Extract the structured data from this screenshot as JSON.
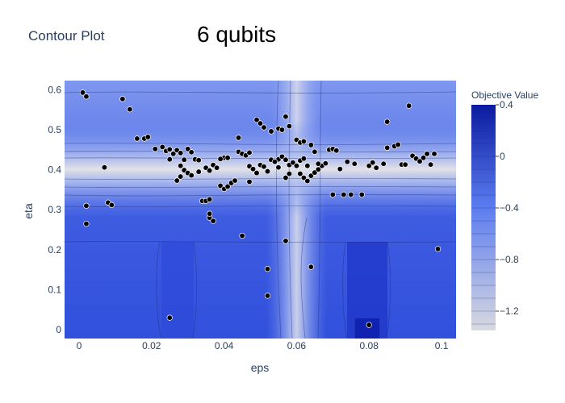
{
  "plot_label": "Contour Plot",
  "chart_data": {
    "type": "contour",
    "title": "6 qubits",
    "xlabel": "eps",
    "ylabel": "eta",
    "xlim": [
      -0.004,
      0.104
    ],
    "ylim": [
      -0.022,
      0.623
    ],
    "x_ticks": [
      "0",
      "0.02",
      "0.04",
      "0.06",
      "0.08",
      "0.1"
    ],
    "x_tick_values": [
      0,
      0.02,
      0.04,
      0.06,
      0.08,
      0.1
    ],
    "y_ticks": [
      "0",
      "0.1",
      "0.2",
      "0.3",
      "0.4",
      "0.5",
      "0.6"
    ],
    "y_tick_values": [
      0,
      0.1,
      0.2,
      0.3,
      0.4,
      0.5,
      0.6
    ],
    "colorbar": {
      "title": "Objective Value",
      "range": [
        -1.35,
        0.4
      ],
      "tick_labels": [
        "0.4",
        "0",
        "−0.4",
        "−0.8",
        "−1.2"
      ],
      "tick_values": [
        0.4,
        0,
        -0.4,
        -0.8,
        -1.2
      ],
      "colors": [
        "#d9d9df",
        "#5b7cf0",
        "#0a1aa0"
      ]
    },
    "points": [
      [
        0.001,
        0.593
      ],
      [
        0.002,
        0.583
      ],
      [
        0.012,
        0.577
      ],
      [
        0.014,
        0.551
      ],
      [
        0.016,
        0.478
      ],
      [
        0.018,
        0.478
      ],
      [
        0.019,
        0.482
      ],
      [
        0.002,
        0.31
      ],
      [
        0.002,
        0.265
      ],
      [
        0.008,
        0.318
      ],
      [
        0.009,
        0.312
      ],
      [
        0.007,
        0.406
      ],
      [
        0.021,
        0.452
      ],
      [
        0.023,
        0.457
      ],
      [
        0.024,
        0.447
      ],
      [
        0.025,
        0.451
      ],
      [
        0.026,
        0.44
      ],
      [
        0.025,
        0.426
      ],
      [
        0.027,
        0.449
      ],
      [
        0.028,
        0.442
      ],
      [
        0.029,
        0.425
      ],
      [
        0.03,
        0.452
      ],
      [
        0.031,
        0.444
      ],
      [
        0.032,
        0.426
      ],
      [
        0.028,
        0.41
      ],
      [
        0.029,
        0.399
      ],
      [
        0.03,
        0.392
      ],
      [
        0.031,
        0.386
      ],
      [
        0.033,
        0.395
      ],
      [
        0.035,
        0.405
      ],
      [
        0.036,
        0.398
      ],
      [
        0.037,
        0.412
      ],
      [
        0.034,
        0.322
      ],
      [
        0.035,
        0.322
      ],
      [
        0.036,
        0.326
      ],
      [
        0.036,
        0.28
      ],
      [
        0.036,
        0.29
      ],
      [
        0.037,
        0.272
      ],
      [
        0.039,
        0.36
      ],
      [
        0.04,
        0.352
      ],
      [
        0.041,
        0.358
      ],
      [
        0.042,
        0.367
      ],
      [
        0.043,
        0.373
      ],
      [
        0.044,
        0.445
      ],
      [
        0.045,
        0.44
      ],
      [
        0.046,
        0.436
      ],
      [
        0.047,
        0.443
      ],
      [
        0.044,
        0.48
      ],
      [
        0.047,
        0.409
      ],
      [
        0.048,
        0.402
      ],
      [
        0.049,
        0.392
      ],
      [
        0.05,
        0.412
      ],
      [
        0.051,
        0.408
      ],
      [
        0.052,
        0.396
      ],
      [
        0.053,
        0.425
      ],
      [
        0.054,
        0.419
      ],
      [
        0.055,
        0.426
      ],
      [
        0.056,
        0.433
      ],
      [
        0.057,
        0.425
      ],
      [
        0.058,
        0.412
      ],
      [
        0.059,
        0.418
      ],
      [
        0.06,
        0.41
      ],
      [
        0.061,
        0.423
      ],
      [
        0.062,
        0.428
      ],
      [
        0.063,
        0.41
      ],
      [
        0.061,
        0.39
      ],
      [
        0.062,
        0.38
      ],
      [
        0.063,
        0.372
      ],
      [
        0.064,
        0.385
      ],
      [
        0.065,
        0.393
      ],
      [
        0.066,
        0.401
      ],
      [
        0.067,
        0.41
      ],
      [
        0.068,
        0.416
      ],
      [
        0.069,
        0.45
      ],
      [
        0.07,
        0.452
      ],
      [
        0.071,
        0.448
      ],
      [
        0.049,
        0.525
      ],
      [
        0.05,
        0.516
      ],
      [
        0.051,
        0.506
      ],
      [
        0.053,
        0.496
      ],
      [
        0.055,
        0.503
      ],
      [
        0.056,
        0.5
      ],
      [
        0.057,
        0.533
      ],
      [
        0.058,
        0.509
      ],
      [
        0.06,
        0.475
      ],
      [
        0.061,
        0.468
      ],
      [
        0.062,
        0.471
      ],
      [
        0.064,
        0.462
      ],
      [
        0.045,
        0.235
      ],
      [
        0.052,
        0.152
      ],
      [
        0.052,
        0.085
      ],
      [
        0.057,
        0.222
      ],
      [
        0.064,
        0.157
      ],
      [
        0.025,
        0.03
      ],
      [
        0.08,
        0.012
      ],
      [
        0.08,
        0.41
      ],
      [
        0.081,
        0.418
      ],
      [
        0.082,
        0.405
      ],
      [
        0.084,
        0.415
      ],
      [
        0.085,
        0.52
      ],
      [
        0.085,
        0.455
      ],
      [
        0.087,
        0.459
      ],
      [
        0.088,
        0.463
      ],
      [
        0.089,
        0.413
      ],
      [
        0.09,
        0.413
      ],
      [
        0.091,
        0.56
      ],
      [
        0.092,
        0.435
      ],
      [
        0.093,
        0.428
      ],
      [
        0.094,
        0.421
      ],
      [
        0.095,
        0.43
      ],
      [
        0.096,
        0.44
      ],
      [
        0.097,
        0.413
      ],
      [
        0.098,
        0.44
      ],
      [
        0.099,
        0.202
      ],
      [
        0.073,
        0.338
      ],
      [
        0.075,
        0.338
      ],
      [
        0.078,
        0.338
      ],
      [
        0.07,
        0.338
      ],
      [
        0.074,
        0.42
      ],
      [
        0.076,
        0.415
      ],
      [
        0.072,
        0.402
      ],
      [
        0.066,
        0.415
      ],
      [
        0.065,
        0.445
      ],
      [
        0.058,
        0.39
      ],
      [
        0.057,
        0.38
      ],
      [
        0.055,
        0.406
      ],
      [
        0.054,
        0.42
      ],
      [
        0.04,
        0.43
      ],
      [
        0.039,
        0.427
      ],
      [
        0.038,
        0.405
      ],
      [
        0.041,
        0.43
      ],
      [
        0.033,
        0.424
      ],
      [
        0.027,
        0.373
      ],
      [
        0.028,
        0.383
      ],
      [
        0.047,
        0.37
      ]
    ]
  }
}
